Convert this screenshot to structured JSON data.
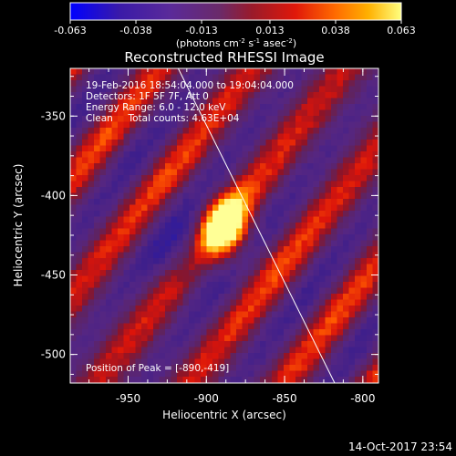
{
  "colorbar": {
    "ticks": [
      "-0.063",
      "-0.038",
      "-0.013",
      "0.013",
      "0.038",
      "0.063"
    ],
    "tick_values": [
      -0.063,
      -0.038,
      -0.013,
      0.013,
      0.038,
      0.063
    ],
    "range": [
      -0.063,
      0.063
    ],
    "units_html": "(photons cm<tspan dy='-4' font-size='7'>-2</tspan><tspan dy='4'> s</tspan><tspan dy='-4' font-size='7'>-1</tspan><tspan dy='4'> asec</tspan><tspan dy='-4' font-size='7'>-2</tspan><tspan dy='4'>)</tspan>",
    "units_text": "(photons cm-2 s-1 asec-2)",
    "colormap": "red-temperature (blue negative, orange/yellow positive)"
  },
  "chart_data": {
    "type": "heatmap",
    "title": "Reconstructed RHESSI Image",
    "xlabel": "Heliocentric X (arcsec)",
    "ylabel": "Heliocentric Y (arcsec)",
    "xlim": [
      -987,
      -790
    ],
    "ylim": [
      -518,
      -320
    ],
    "xticks": [
      -950,
      -900,
      -850,
      -800
    ],
    "yticks": [
      -350,
      -400,
      -450,
      -500
    ],
    "xtick_labels": [
      "-950",
      "-900",
      "-850",
      "-800"
    ],
    "ytick_labels": [
      "-350",
      "-400",
      "-450",
      "-500"
    ],
    "annotations": [
      "19-Feb-2016 18:54:04.000 to 19:04:04.000",
      "Detectors: 1F 5F 7F, Att 0",
      "Energy Range: 6.0 - 12.0 keV",
      "Clean     Total counts: 4.63E+04"
    ],
    "peak_label": "Position of Peak = [-890,-419]",
    "peak": {
      "x": -890,
      "y": -419
    },
    "limb_line": [
      {
        "x": -918,
        "y": -320
      },
      {
        "x": -818,
        "y": -518
      }
    ]
  },
  "footer": {
    "date": "14-Oct-2017 23:54"
  }
}
